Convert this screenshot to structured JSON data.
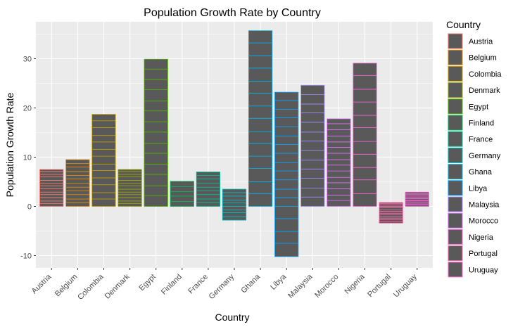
{
  "chart_data": {
    "type": "bar",
    "title": "Population Growth Rate by Country",
    "xlabel": "Country",
    "ylabel": "Population Growth Rate",
    "legend_title": "Country",
    "legend_position": "right",
    "grid": true,
    "ylim": [
      -12.5,
      37.5
    ],
    "yticks": [
      -10,
      0,
      10,
      20,
      30
    ],
    "bar_fill": "#595959",
    "panel_bg": "#ebebeb",
    "categories": [
      "Austria",
      "Belgium",
      "Colombia",
      "Denmark",
      "Egypt",
      "Finland",
      "France",
      "Germany",
      "Ghana",
      "Libya",
      "Malaysia",
      "Morocco",
      "Nigeria",
      "Portugal",
      "Uruguay"
    ],
    "colors": [
      "#F8766D",
      "#E38900",
      "#C49A00",
      "#99A800",
      "#53B400",
      "#00BC56",
      "#00C094",
      "#00BFC4",
      "#00B6EB",
      "#06A4FF",
      "#A58AFF",
      "#DF70F8",
      "#FB61D7",
      "#FF66A8",
      "#FB61D7"
    ],
    "segments": [
      [
        0.6,
        0.5,
        0.7,
        0.6,
        0.5,
        0.7,
        0.6,
        0.5,
        0.6,
        0.7,
        0.5,
        0.6,
        0.4
      ],
      [
        0.8,
        0.7,
        0.9,
        0.8,
        0.7,
        0.8,
        0.9,
        0.7,
        0.8,
        0.9,
        0.7,
        0.8
      ],
      [
        1.5,
        1.3,
        1.6,
        1.4,
        1.5,
        1.3,
        1.6,
        1.4,
        1.5,
        1.3,
        1.6,
        1.4,
        1.3
      ],
      [
        0.6,
        0.5,
        0.7,
        0.6,
        0.5,
        0.6,
        0.7,
        0.5,
        0.6,
        0.7,
        0.5,
        0.6,
        0.4
      ],
      [
        2.2,
        2.0,
        2.3,
        2.1,
        2.2,
        2.0,
        2.3,
        2.1,
        2.2,
        2.0,
        2.3,
        2.1,
        2.1,
        2.0
      ],
      [
        1.0,
        1.1,
        0.9,
        1.0,
        1.1
      ],
      [
        0.8,
        0.7,
        0.9,
        0.8,
        0.7,
        0.8,
        0.9,
        0.7,
        0.7
      ],
      [
        0.7,
        0.6,
        0.8,
        0.7,
        0.7,
        -0.7,
        -0.6,
        -0.8,
        -0.7
      ],
      [
        2.6,
        2.4,
        2.7,
        2.5,
        2.6,
        2.4,
        2.7,
        2.5,
        2.6,
        2.4,
        2.7,
        2.5,
        2.6,
        2.5
      ],
      [
        1.8,
        1.7,
        1.9,
        1.8,
        1.7,
        1.9,
        1.8,
        1.7,
        1.9,
        1.8,
        1.7,
        1.8,
        1.7,
        -2.5,
        -2.6,
        -2.4,
        -2.7
      ],
      [
        1.9,
        1.8,
        2.0,
        1.9,
        1.8,
        2.0,
        1.9,
        1.8,
        2.0,
        1.9,
        1.8,
        1.9,
        1.9
      ],
      [
        1.2,
        1.1,
        1.3,
        1.2,
        1.1,
        1.3,
        1.2,
        1.1,
        1.3,
        1.2,
        1.1,
        1.2,
        1.3,
        1.2,
        1.0
      ],
      [
        2.6,
        2.8,
        2.5,
        2.7,
        2.6,
        2.8,
        2.5,
        2.7,
        2.6,
        2.8,
        2.5
      ],
      [
        0.3,
        0.3,
        0.2,
        -0.3,
        -0.4,
        -0.3,
        -0.4,
        -0.3,
        -0.4,
        -0.3,
        -0.3,
        -0.4,
        -0.3
      ],
      [
        0.3,
        0.2,
        0.3,
        0.3,
        0.2,
        0.3,
        0.2,
        0.3,
        0.3,
        0.2,
        0.3
      ]
    ]
  }
}
